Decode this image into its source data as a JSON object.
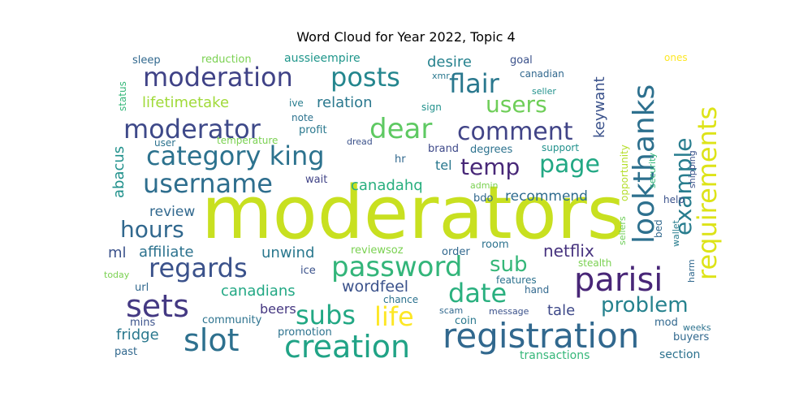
{
  "chart_data": {
    "type": "wordcloud",
    "title": "Word Cloud for Year 2022, Topic 4",
    "words": [
      {
        "text": "moderators",
        "weight": 100,
        "color": "#c8e020"
      },
      {
        "text": "registration",
        "weight": 40,
        "color": "#31688e"
      },
      {
        "text": "creation",
        "weight": 38,
        "color": "#20a386"
      },
      {
        "text": "parisi",
        "weight": 38,
        "color": "#482677"
      },
      {
        "text": "slot",
        "weight": 36,
        "color": "#2d708e"
      },
      {
        "text": "password",
        "weight": 35,
        "color": "#33b57a"
      },
      {
        "text": "sets",
        "weight": 35,
        "color": "#443983"
      },
      {
        "text": "category king",
        "weight": 34,
        "color": "#2c728e"
      },
      {
        "text": "username",
        "weight": 34,
        "color": "#2e6e8e"
      },
      {
        "text": "moderator",
        "weight": 33,
        "color": "#3e4989"
      },
      {
        "text": "moderation",
        "weight": 33,
        "color": "#404387"
      },
      {
        "text": "posts",
        "weight": 33,
        "color": "#24868e"
      },
      {
        "text": "dear",
        "weight": 33,
        "color": "#5ec962"
      },
      {
        "text": "regards",
        "weight": 33,
        "color": "#3b528b"
      },
      {
        "text": "lookthanks",
        "weight": 36,
        "color": "#2d708e"
      },
      {
        "text": "requirements",
        "weight": 34,
        "color": "#dde318"
      },
      {
        "text": "date",
        "weight": 32,
        "color": "#2ab07f"
      },
      {
        "text": "subs",
        "weight": 32,
        "color": "#22a884"
      },
      {
        "text": "life",
        "weight": 32,
        "color": "#fde725"
      },
      {
        "text": "comment",
        "weight": 30,
        "color": "#414487"
      },
      {
        "text": "flair",
        "weight": 30,
        "color": "#2a788e"
      },
      {
        "text": "temp",
        "weight": 28,
        "color": "#482878"
      },
      {
        "text": "page",
        "weight": 28,
        "color": "#22a884"
      },
      {
        "text": "hours",
        "weight": 28,
        "color": "#31688e"
      },
      {
        "text": "example",
        "weight": 28,
        "color": "#287d8e"
      },
      {
        "text": "users",
        "weight": 26,
        "color": "#6ece58"
      },
      {
        "text": "sub",
        "weight": 26,
        "color": "#35b779"
      },
      {
        "text": "problem",
        "weight": 24,
        "color": "#26828e"
      },
      {
        "text": "netflix",
        "weight": 20,
        "color": "#46327e"
      },
      {
        "text": "wordfeel",
        "weight": 18,
        "color": "#3b528b"
      },
      {
        "text": "canadians",
        "weight": 17,
        "color": "#22a884"
      },
      {
        "text": "affiliate",
        "weight": 18,
        "color": "#2c728e"
      },
      {
        "text": "unwind",
        "weight": 18,
        "color": "#2a788e"
      },
      {
        "text": "canadahq",
        "weight": 17,
        "color": "#29af7f"
      },
      {
        "text": "review",
        "weight": 16,
        "color": "#31688e"
      },
      {
        "text": "recommend",
        "weight": 16,
        "color": "#2f6c8e"
      },
      {
        "text": "desire",
        "weight": 17,
        "color": "#26828e"
      },
      {
        "text": "relation",
        "weight": 17,
        "color": "#2a788e"
      },
      {
        "text": "lifetimetake",
        "weight": 17,
        "color": "#a0da39"
      },
      {
        "text": "keywant",
        "weight": 17,
        "color": "#3b528b"
      },
      {
        "text": "abacus",
        "weight": 17,
        "color": "#21918c"
      },
      {
        "text": "fridge",
        "weight": 17,
        "color": "#2a788e"
      },
      {
        "text": "tale",
        "weight": 17,
        "color": "#3e4989"
      },
      {
        "text": "beers",
        "weight": 15,
        "color": "#453781"
      },
      {
        "text": "ml",
        "weight": 17,
        "color": "#3b528b"
      },
      {
        "text": "tel",
        "weight": 15,
        "color": "#2a788e"
      },
      {
        "text": "opportunity",
        "weight": 11,
        "color": "#b5de2b"
      },
      {
        "text": "aussieempire",
        "weight": 12,
        "color": "#1f968b"
      },
      {
        "text": "reduction",
        "weight": 11,
        "color": "#7ad151"
      },
      {
        "text": "sleep",
        "weight": 11,
        "color": "#31688e"
      },
      {
        "text": "status",
        "weight": 10,
        "color": "#35b779"
      },
      {
        "text": "goal",
        "weight": 11,
        "color": "#3b528b"
      },
      {
        "text": "canadian",
        "weight": 11,
        "color": "#31688e"
      },
      {
        "text": "ones",
        "weight": 10,
        "color": "#fde725"
      },
      {
        "text": "xmr",
        "weight": 9,
        "color": "#2a788e"
      },
      {
        "text": "seller",
        "weight": 9,
        "color": "#21918c"
      },
      {
        "text": "ive",
        "weight": 10,
        "color": "#287d8e"
      },
      {
        "text": "sign",
        "weight": 10,
        "color": "#21918c"
      },
      {
        "text": "note",
        "weight": 10,
        "color": "#2c728e"
      },
      {
        "text": "profit",
        "weight": 10,
        "color": "#2a788e"
      },
      {
        "text": "temperature",
        "weight": 10,
        "color": "#7ad151"
      },
      {
        "text": "user",
        "weight": 9,
        "color": "#2c728e"
      },
      {
        "text": "dread",
        "weight": 9,
        "color": "#3b528b"
      },
      {
        "text": "brand",
        "weight": 10,
        "color": "#3e4989"
      },
      {
        "text": "degrees",
        "weight": 10,
        "color": "#2c728e"
      },
      {
        "text": "support",
        "weight": 10,
        "color": "#21918c"
      },
      {
        "text": "security",
        "weight": 9,
        "color": "#35b779"
      },
      {
        "text": "shipping",
        "weight": 9,
        "color": "#3b528b"
      },
      {
        "text": "hr",
        "weight": 10,
        "color": "#31688e"
      },
      {
        "text": "wait",
        "weight": 10,
        "color": "#414487"
      },
      {
        "text": "admin",
        "weight": 9,
        "color": "#7ad151"
      },
      {
        "text": "bdo",
        "weight": 10,
        "color": "#31688e"
      },
      {
        "text": "help",
        "weight": 10,
        "color": "#3b528b"
      },
      {
        "text": "sellers",
        "weight": 9,
        "color": "#6ece58"
      },
      {
        "text": "bed",
        "weight": 10,
        "color": "#31688e"
      },
      {
        "text": "wallet",
        "weight": 9,
        "color": "#287d8e"
      },
      {
        "text": "reviewsoz",
        "weight": 10,
        "color": "#7ad151"
      },
      {
        "text": "order",
        "weight": 10,
        "color": "#31688e"
      },
      {
        "text": "room",
        "weight": 10,
        "color": "#2c728e"
      },
      {
        "text": "stealth",
        "weight": 10,
        "color": "#7ad151"
      },
      {
        "text": "ice",
        "weight": 10,
        "color": "#3b528b"
      },
      {
        "text": "harm",
        "weight": 9,
        "color": "#31688e"
      },
      {
        "text": "today",
        "weight": 9,
        "color": "#7ad151"
      },
      {
        "text": "url",
        "weight": 10,
        "color": "#31688e"
      },
      {
        "text": "features",
        "weight": 10,
        "color": "#2c728e"
      },
      {
        "text": "hand",
        "weight": 10,
        "color": "#31688e"
      },
      {
        "text": "chance",
        "weight": 10,
        "color": "#2c728e"
      },
      {
        "text": "scam",
        "weight": 9,
        "color": "#31688e"
      },
      {
        "text": "message",
        "weight": 9,
        "color": "#3b528b"
      },
      {
        "text": "community",
        "weight": 10,
        "color": "#2c728e"
      },
      {
        "text": "coin",
        "weight": 10,
        "color": "#2a788e"
      },
      {
        "text": "mins",
        "weight": 10,
        "color": "#3b528b"
      },
      {
        "text": "promotion",
        "weight": 10,
        "color": "#2c728e"
      },
      {
        "text": "mod",
        "weight": 10,
        "color": "#31688e"
      },
      {
        "text": "buyers",
        "weight": 10,
        "color": "#31688e"
      },
      {
        "text": "weeks",
        "weight": 9,
        "color": "#2c728e"
      },
      {
        "text": "past",
        "weight": 10,
        "color": "#31688e"
      },
      {
        "text": "transactions",
        "weight": 10,
        "color": "#35b779"
      },
      {
        "text": "section",
        "weight": 10,
        "color": "#2c728e"
      }
    ]
  }
}
